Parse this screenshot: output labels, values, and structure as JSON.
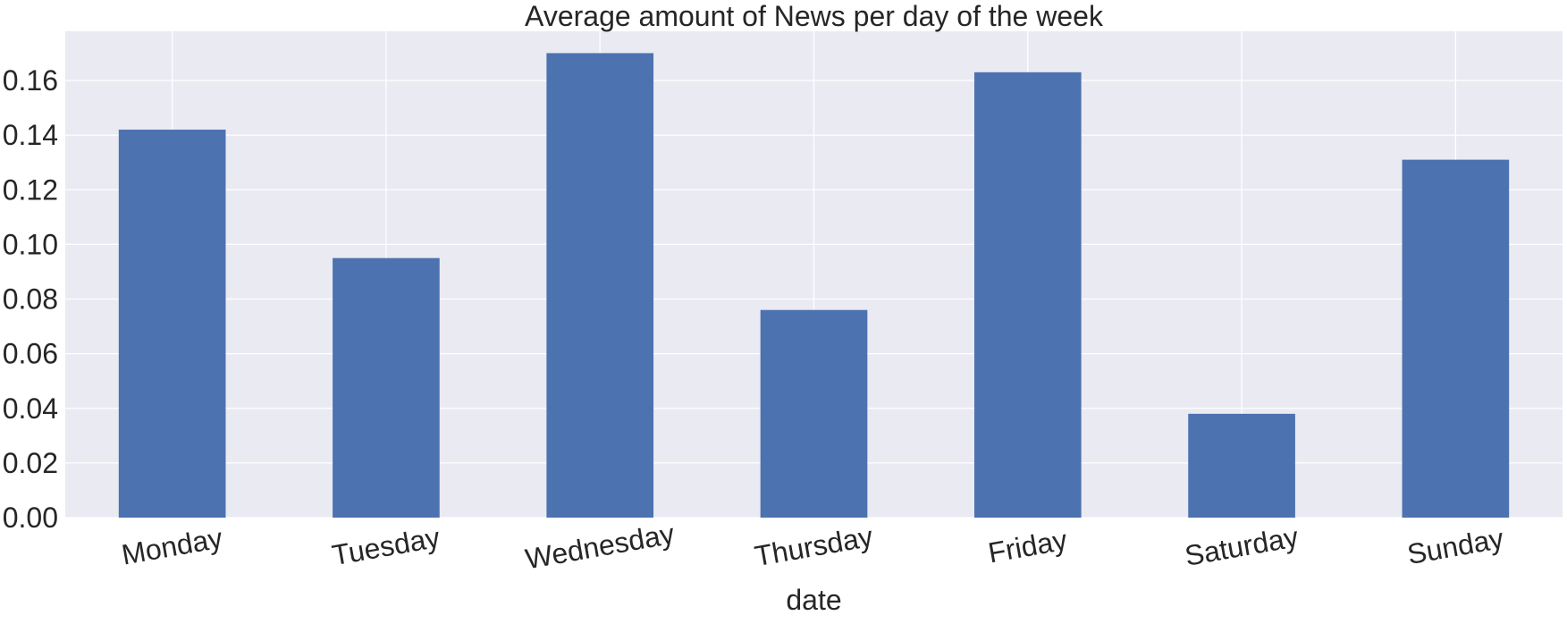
{
  "chart_data": {
    "type": "bar",
    "title": "Average amount of News per day of the week",
    "xlabel": "date",
    "ylabel": "",
    "categories": [
      "Monday",
      "Tuesday",
      "Wednesday",
      "Thursday",
      "Friday",
      "Saturday",
      "Sunday"
    ],
    "values": [
      0.142,
      0.095,
      0.17,
      0.076,
      0.163,
      0.038,
      0.131
    ],
    "ylim": [
      0,
      0.178
    ],
    "yticks": [
      0.0,
      0.02,
      0.04,
      0.06,
      0.08,
      0.1,
      0.12,
      0.14,
      0.16
    ],
    "ytick_labels": [
      "0.00",
      "0.02",
      "0.04",
      "0.06",
      "0.08",
      "0.10",
      "0.12",
      "0.14",
      "0.16"
    ],
    "grid": true,
    "legend": "none",
    "colors": {
      "bar": "#4c72b0",
      "plot_background": "#eaeaf2",
      "grid": "#ffffff",
      "text": "#262626"
    }
  }
}
